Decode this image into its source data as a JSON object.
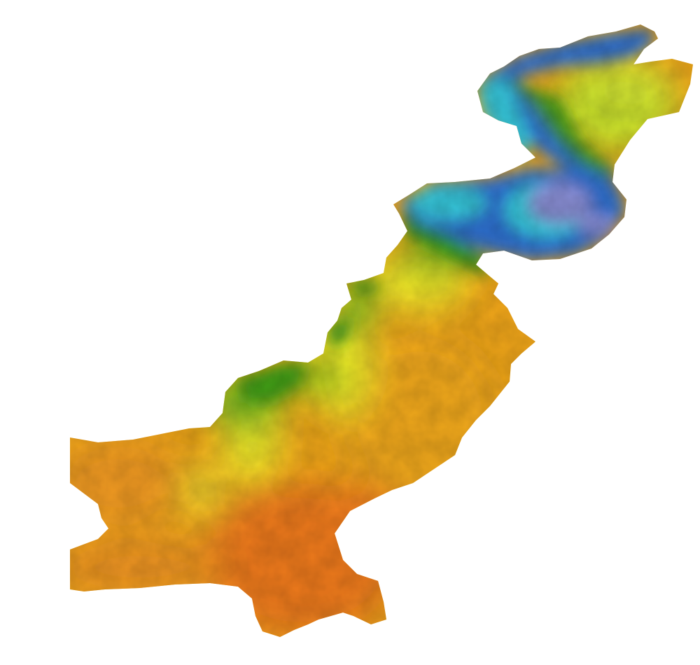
{
  "map": {
    "type": "raster-heatmap",
    "legend": null,
    "colors": {
      "background": "#ffffff",
      "coldest": "#8a8fd6",
      "cold": "#2f6fcf",
      "cool": "#36c4d8",
      "mild": "#2b8f1a",
      "temperate": "#9ac81a",
      "warm": "#f2ec2a",
      "hot": "#f0a61a",
      "hottest": "#ee7a1e"
    }
  }
}
